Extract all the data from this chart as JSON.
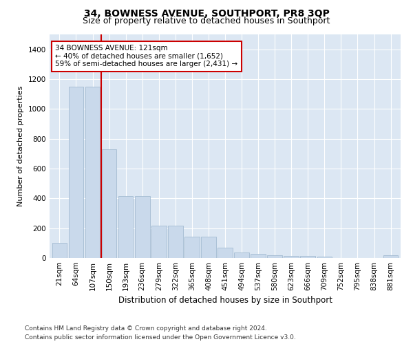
{
  "title": "34, BOWNESS AVENUE, SOUTHPORT, PR8 3QP",
  "subtitle": "Size of property relative to detached houses in Southport",
  "xlabel": "Distribution of detached houses by size in Southport",
  "ylabel": "Number of detached properties",
  "categories": [
    "21sqm",
    "64sqm",
    "107sqm",
    "150sqm",
    "193sqm",
    "236sqm",
    "279sqm",
    "322sqm",
    "365sqm",
    "408sqm",
    "451sqm",
    "494sqm",
    "537sqm",
    "580sqm",
    "623sqm",
    "666sqm",
    "709sqm",
    "752sqm",
    "795sqm",
    "838sqm",
    "881sqm"
  ],
  "values": [
    100,
    1150,
    1150,
    730,
    415,
    415,
    215,
    215,
    145,
    145,
    70,
    35,
    30,
    18,
    12,
    12,
    10,
    2,
    2,
    2,
    18
  ],
  "bar_color": "#c9d9eb",
  "bar_edge_color": "#9ab4cc",
  "red_line_index": 2.5,
  "annotation_text": "34 BOWNESS AVENUE: 121sqm\n← 40% of detached houses are smaller (1,652)\n59% of semi-detached houses are larger (2,431) →",
  "annotation_box_facecolor": "#ffffff",
  "annotation_box_edgecolor": "#cc0000",
  "red_line_color": "#cc0000",
  "ylim": [
    0,
    1500
  ],
  "yticks": [
    0,
    200,
    400,
    600,
    800,
    1000,
    1200,
    1400
  ],
  "plot_bg_color": "#dce7f3",
  "grid_color": "#ffffff",
  "title_fontsize": 10,
  "subtitle_fontsize": 9,
  "xlabel_fontsize": 8.5,
  "ylabel_fontsize": 8,
  "tick_fontsize": 7.5,
  "annotation_fontsize": 7.5,
  "footer_fontsize": 6.5,
  "footer": "Contains HM Land Registry data © Crown copyright and database right 2024.\nContains public sector information licensed under the Open Government Licence v3.0."
}
